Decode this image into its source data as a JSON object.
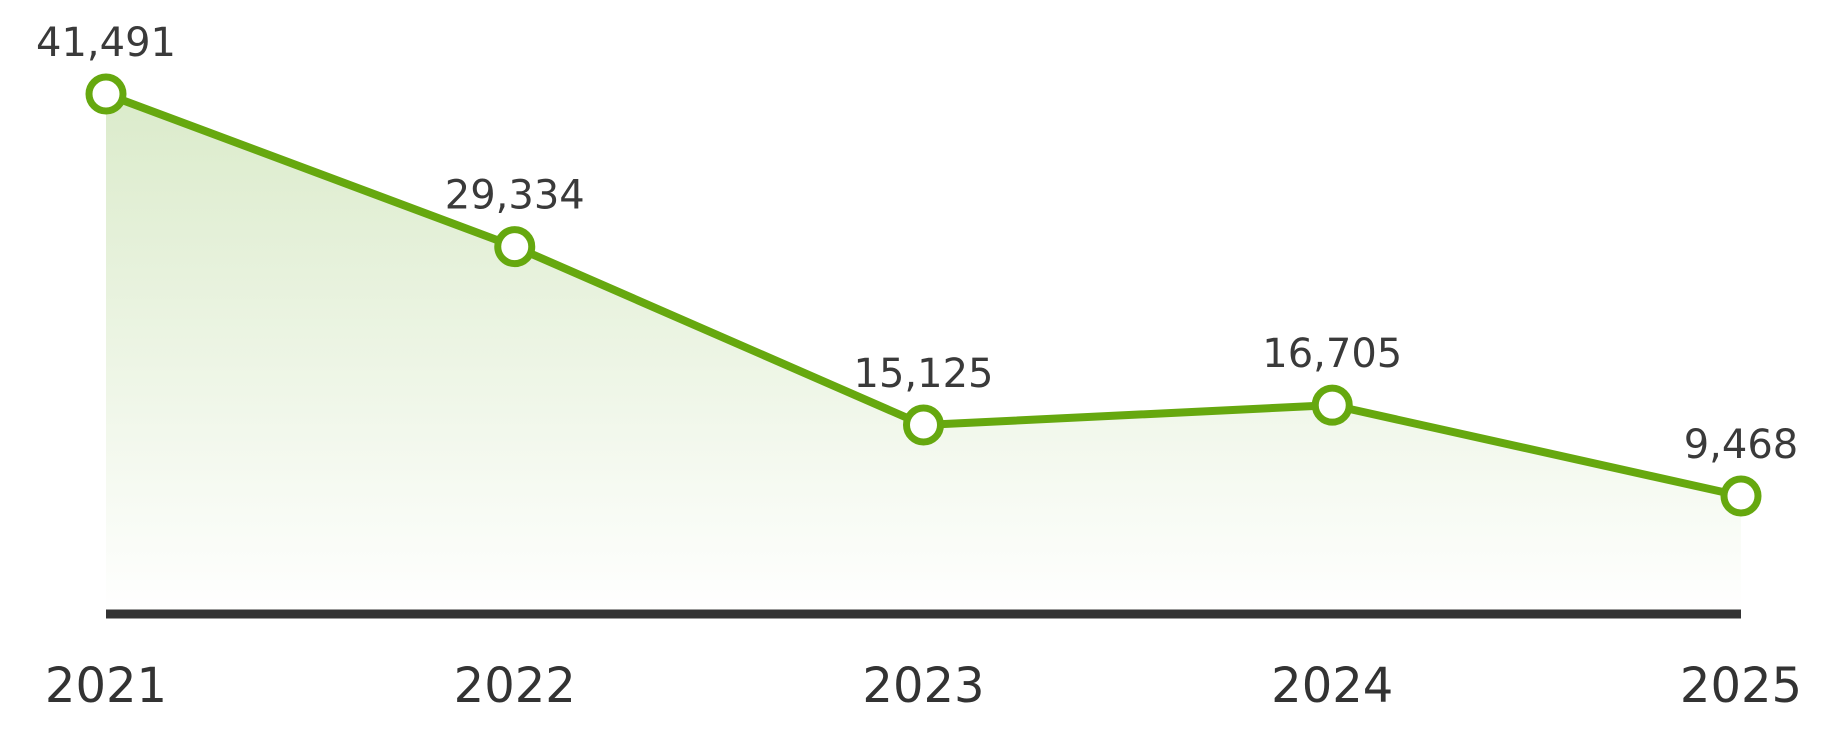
{
  "colors": {
    "line": "#66a80f",
    "area_top": "#d9eac8",
    "area_bottom": "#ffffff",
    "axis": "#333333",
    "marker_fill": "#ffffff",
    "text": "#3a3a3a"
  },
  "chart_data": {
    "type": "area",
    "categories": [
      "2021",
      "2022",
      "2023",
      "2024",
      "2025"
    ],
    "values": [
      41491,
      29334,
      15125,
      16705,
      9468
    ],
    "value_labels": [
      "41,491",
      "29,334",
      "15,125",
      "16,705",
      "9,468"
    ],
    "ylim": [
      0,
      45000
    ],
    "grid": false,
    "legend": "none"
  }
}
